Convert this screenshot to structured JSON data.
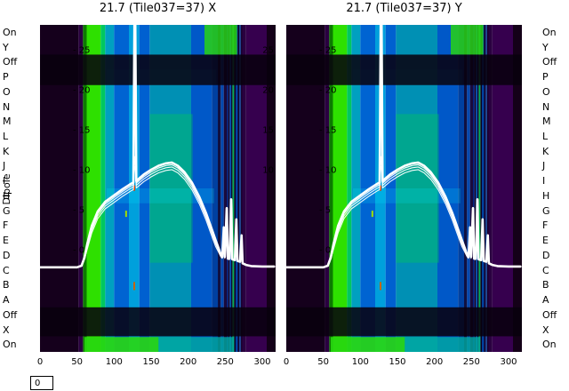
{
  "panels": [
    {
      "title": "21.7 (Tile037=37) X",
      "inner_ticks_left": [
        "- 25",
        "- 20",
        "- 15",
        "- 10",
        "- 5",
        "- 0"
      ],
      "inner_ticks_right": [
        "25",
        "20",
        "15",
        "10"
      ],
      "x_ticks": [
        "0",
        "50",
        "100",
        "150",
        "200",
        "250",
        "300"
      ]
    },
    {
      "title": "21.7 (Tile037=37) Y",
      "inner_ticks_left": [
        "- 25",
        "- 20",
        "- 15",
        "- 10",
        "- 5",
        "- 0"
      ],
      "inner_ticks_right": [],
      "x_ticks": [
        "0",
        "50",
        "100",
        "150",
        "200",
        "250",
        "300"
      ]
    }
  ],
  "axis": {
    "ylabel": "Dipole",
    "dipole_labels": [
      "On",
      "Y",
      "Off",
      "P",
      "O",
      "N",
      "M",
      "L",
      "K",
      "J",
      "I",
      "H",
      "G",
      "F",
      "E",
      "D",
      "C",
      "B",
      "A",
      "Off",
      "X",
      "On"
    ]
  },
  "frame_indicator": "0",
  "chart_data": {
    "type": "heatmap",
    "title_left": "21.7 (Tile037=37) X",
    "title_right": "21.7 (Tile037=37) Y",
    "rows": [
      "On",
      "Y",
      "Off",
      "P",
      "O",
      "N",
      "M",
      "L",
      "K",
      "J",
      "I",
      "H",
      "G",
      "F",
      "E",
      "D",
      "C",
      "B",
      "A",
      "Off",
      "X",
      "On"
    ],
    "x_axis": {
      "ticks": [
        0,
        50,
        100,
        150,
        200,
        250,
        300
      ],
      "range": [
        0,
        318
      ]
    },
    "inner_axis": {
      "tick_values": [
        25,
        20,
        15,
        10,
        5,
        0
      ]
    },
    "line_color": "#ffffff",
    "spectrum": [
      [
        0,
        -2.2
      ],
      [
        50,
        -2.2
      ],
      [
        56,
        -2.0
      ],
      [
        60,
        -1.0
      ],
      [
        64,
        0.8
      ],
      [
        70,
        3.0
      ],
      [
        78,
        4.8
      ],
      [
        88,
        6.0
      ],
      [
        100,
        6.8
      ],
      [
        112,
        7.6
      ],
      [
        122,
        8.2
      ],
      [
        126,
        8.4
      ],
      [
        127.5,
        30
      ],
      [
        128.5,
        30
      ],
      [
        130,
        8.6
      ],
      [
        140,
        9.4
      ],
      [
        150,
        10.0
      ],
      [
        160,
        10.5
      ],
      [
        170,
        10.8
      ],
      [
        178,
        10.9
      ],
      [
        186,
        10.5
      ],
      [
        195,
        9.7
      ],
      [
        205,
        8.4
      ],
      [
        215,
        6.6
      ],
      [
        224,
        4.6
      ],
      [
        231,
        2.8
      ],
      [
        237,
        1.2
      ],
      [
        241,
        0.2
      ],
      [
        244,
        -0.6
      ],
      [
        246,
        -0.9
      ],
      [
        248,
        2.8
      ],
      [
        249.5,
        -0.9
      ],
      [
        252,
        5.2
      ],
      [
        253.5,
        -1.1
      ],
      [
        256,
        -1.1
      ],
      [
        258,
        6.3
      ],
      [
        259.5,
        -1.2
      ],
      [
        263,
        -1.3
      ],
      [
        265,
        3.8
      ],
      [
        266.5,
        -1.4
      ],
      [
        270,
        -1.5
      ],
      [
        272,
        1.8
      ],
      [
        273.5,
        -1.7
      ],
      [
        278,
        -1.9
      ],
      [
        285,
        -2.05
      ],
      [
        300,
        -2.1
      ],
      [
        316,
        -2.1
      ]
    ],
    "heatmap": {
      "bands": [
        {
          "ch0": 0,
          "ch1": 52,
          "color": "#15001c"
        },
        {
          "ch0": 52,
          "ch1": 58,
          "color": "#2a0040"
        },
        {
          "ch0": 58,
          "ch1": 63,
          "color": "#0c7a00"
        },
        {
          "ch0": 63,
          "ch1": 82,
          "color": "#2ee000"
        },
        {
          "ch0": 82,
          "ch1": 88,
          "color": "#00c860"
        },
        {
          "ch0": 88,
          "ch1": 100,
          "color": "#00a0c0"
        },
        {
          "ch0": 100,
          "ch1": 120,
          "color": "#0064d2"
        },
        {
          "ch0": 120,
          "ch1": 134,
          "color": "#00a0dc"
        },
        {
          "ch0": 134,
          "ch1": 148,
          "color": "#0060d0"
        },
        {
          "ch0": 148,
          "ch1": 204,
          "color": "#0090b4"
        },
        {
          "ch0": 204,
          "ch1": 232,
          "color": "#0058c8"
        },
        {
          "ch0": 232,
          "ch1": 240,
          "color": "#0040a0"
        },
        {
          "ch0": 240,
          "ch1": 244,
          "color": "#101040"
        },
        {
          "ch0": 244,
          "ch1": 248,
          "color": "#0048b0"
        },
        {
          "ch0": 248,
          "ch1": 252,
          "color": "#1a0a3c"
        },
        {
          "ch0": 278,
          "ch1": 306,
          "color": "#36004e"
        },
        {
          "ch0": 306,
          "ch1": 318,
          "color": "#140018"
        }
      ],
      "stripes": [
        {
          "ch0": 252,
          "ch1": 254,
          "color": "#002080"
        },
        {
          "ch0": 254,
          "ch1": 256,
          "color": "#100024"
        },
        {
          "ch0": 256,
          "ch1": 258,
          "color": "#0048b0"
        },
        {
          "ch0": 258,
          "ch1": 260,
          "color": "#061430"
        },
        {
          "ch0": 260,
          "ch1": 262,
          "color": "#00b050"
        },
        {
          "ch0": 262,
          "ch1": 264,
          "color": "#0a0020"
        },
        {
          "ch0": 264,
          "ch1": 267,
          "color": "#0040a0"
        },
        {
          "ch0": 267,
          "ch1": 269,
          "color": "#140028"
        },
        {
          "ch0": 269,
          "ch1": 271,
          "color": "#003890"
        },
        {
          "ch0": 271,
          "ch1": 273,
          "color": "#1a0030"
        },
        {
          "ch0": 273,
          "ch1": 278,
          "color": "#2a0040"
        }
      ],
      "row_highlights": [
        {
          "ch0": 222,
          "ch1": 266,
          "row0": 0,
          "row1": 2,
          "color": "rgba(40,210,20,0.85)"
        },
        {
          "ch0": 90,
          "ch1": 238,
          "row0": 3,
          "row1": 4,
          "color": "rgba(0,220,255,0.18)"
        },
        {
          "ch0": 148,
          "ch1": 206,
          "row0": 6,
          "row1": 16,
          "color": "rgba(0,200,90,0.40)"
        },
        {
          "ch0": 90,
          "ch1": 235,
          "row0": 11,
          "row1": 12,
          "color": "rgba(0,230,255,0.20)"
        },
        {
          "ch0": 60,
          "ch1": 160,
          "row0": 21,
          "row1": 22,
          "color": "rgba(40,215,15,0.90)"
        },
        {
          "ch0": 160,
          "ch1": 262,
          "row0": 21,
          "row1": 22,
          "color": "rgba(0,170,160,0.80)"
        }
      ],
      "dark_row_bands": [
        [
          2.0,
          4.05
        ],
        [
          19.0,
          20.95
        ]
      ],
      "dark_color": "#08000d",
      "dark_opacity": 0.86,
      "specks": [
        {
          "ch": 126,
          "row": 10.8,
          "color": "#d84000",
          "h": 6
        },
        {
          "ch": 126,
          "row": 17.3,
          "color": "#c86400",
          "h": 9
        },
        {
          "ch": 115,
          "row": 12.5,
          "color": "#a0e000",
          "h": 7
        }
      ]
    }
  }
}
